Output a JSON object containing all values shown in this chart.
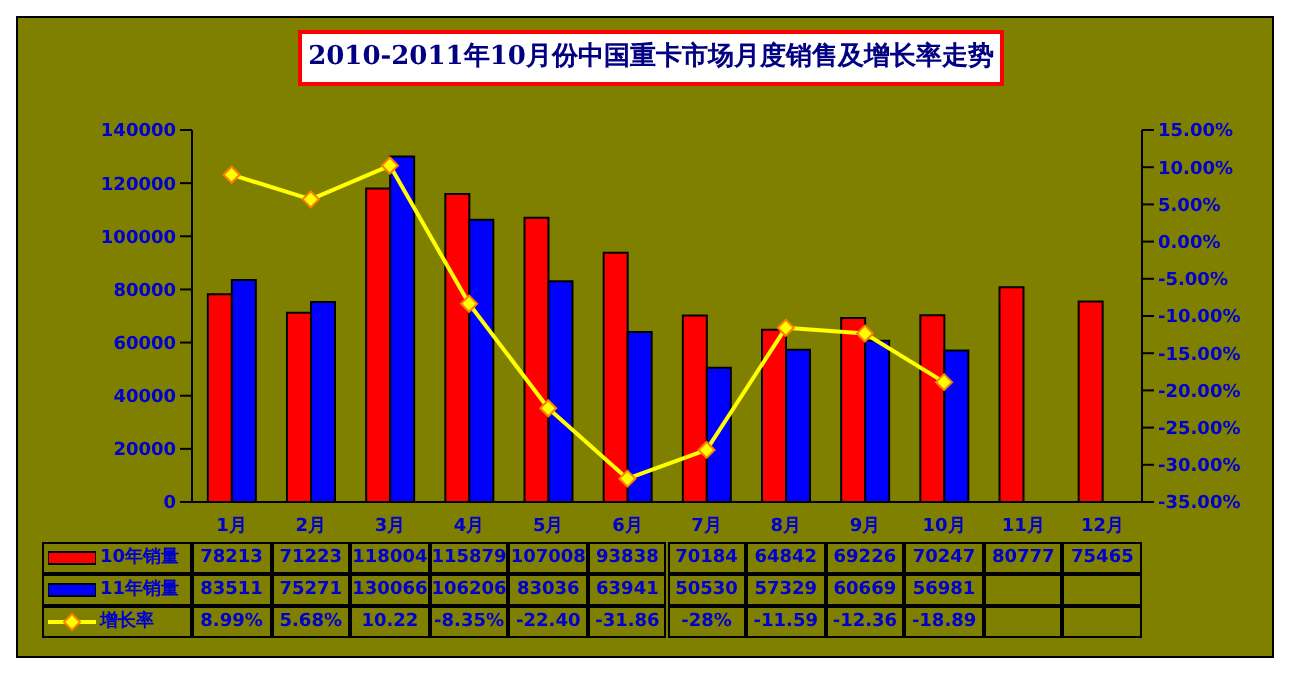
{
  "chart_data": {
    "type": "bar",
    "title": "2010-2011年10月份中国重卡市场月度销售及增长率走势",
    "categories": [
      "1月",
      "2月",
      "3月",
      "4月",
      "5月",
      "6月",
      "7月",
      "8月",
      "9月",
      "10月",
      "11月",
      "12月"
    ],
    "series": [
      {
        "name": "10年销量",
        "color": "#ff0000",
        "values": [
          78213,
          71223,
          118004,
          115879,
          107008,
          93838,
          70184,
          64842,
          69226,
          70247,
          80777,
          75465
        ]
      },
      {
        "name": "11年销量",
        "color": "#0000ff",
        "values": [
          83511,
          75271,
          130066,
          106206,
          83036,
          63941,
          50530,
          57329,
          60669,
          56981,
          null,
          null
        ]
      },
      {
        "name": "增长率",
        "type": "line",
        "axis": "y2",
        "color": "#ffff00",
        "marker": "diamond",
        "values": [
          8.99,
          5.68,
          10.22,
          -8.35,
          -22.4,
          -31.86,
          -28,
          -11.59,
          -12.36,
          -18.89,
          null,
          null
        ],
        "value_labels": [
          "8.99%",
          "5.68%",
          "10.22",
          "-8.35%",
          "-22.40",
          "-31.86",
          "-28%",
          "-11.59",
          "-12.36",
          "-18.89",
          null,
          null
        ]
      }
    ],
    "ylim": [
      0,
      140000
    ],
    "yticks": [
      0,
      20000,
      40000,
      60000,
      80000,
      100000,
      120000,
      140000
    ],
    "y2lim": [
      -35,
      15
    ],
    "y2ticks": [
      {
        "value": -35,
        "label": "-35.00%"
      },
      {
        "value": -30,
        "label": "-30.00%"
      },
      {
        "value": -25,
        "label": "-25.00%"
      },
      {
        "value": -20,
        "label": "-20.00%"
      },
      {
        "value": -15,
        "label": "-15.00%"
      },
      {
        "value": -10,
        "label": "-10.00%"
      },
      {
        "value": -5,
        "label": "-5.00%"
      },
      {
        "value": 0,
        "label": "0.00%"
      },
      {
        "value": 5,
        "label": "5.00%"
      },
      {
        "value": 10,
        "label": "10.00%"
      },
      {
        "value": 15,
        "label": "15.00%"
      }
    ],
    "data_labels": true,
    "legend": "bottom",
    "grid": false
  }
}
